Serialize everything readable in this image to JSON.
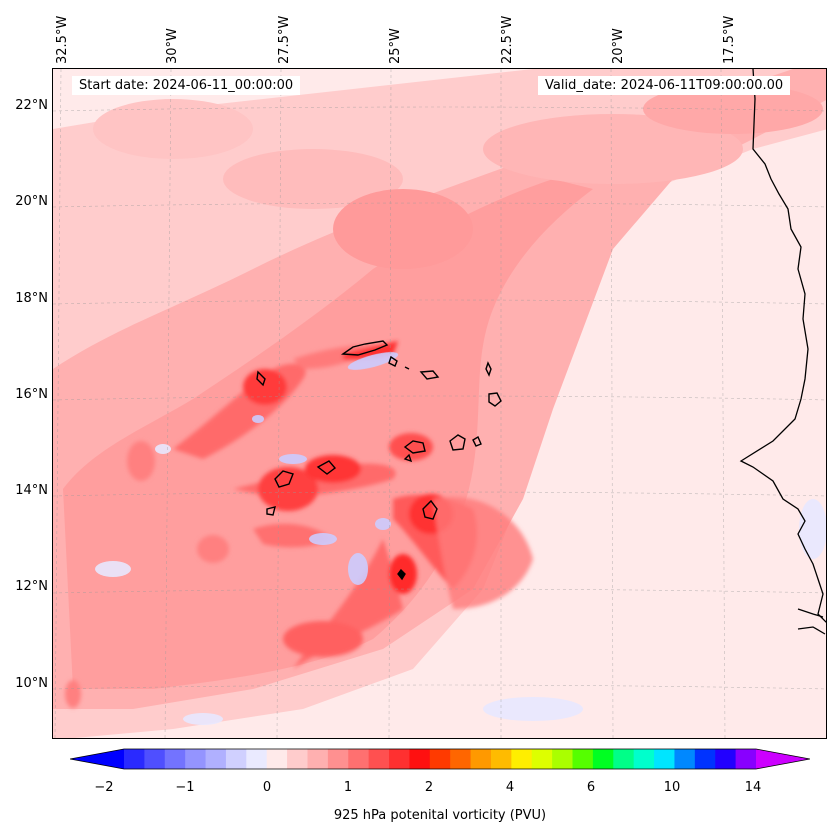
{
  "map": {
    "start_date_label": "Start date: 2024-06-11_00:00:00",
    "valid_date_label": "Valid_date: 2024-06-11T09:00:00.00",
    "longitude_labels": [
      "32.5°W",
      "30°W",
      "27.5°W",
      "25°W",
      "22.5°W",
      "20°W",
      "17.5°W"
    ],
    "latitude_labels": [
      "22°N",
      "20°N",
      "18°N",
      "16°N",
      "14°N",
      "12°N",
      "10°N"
    ],
    "extent": {
      "lon_min": -33.0,
      "lon_max": -15.3,
      "lat_min": 8.8,
      "lat_max": 22.8
    },
    "field": "925 hPa potential vorticity",
    "palette": {
      "background": "#ffeaea",
      "light_pink": "#ffcccc",
      "pink": "#ffb0b0",
      "medium_red": "#ff8888",
      "red": "#ff5a5a",
      "strong_red": "#ff2a2a",
      "negative_blue": "#ccccff",
      "negative_light": "#e8e8ff",
      "coastline": "#000000"
    }
  },
  "colorbar": {
    "label": "925 hPa potenital vorticity (PVU)",
    "tick_labels": [
      "−2",
      "−1",
      "0",
      "1",
      "2",
      "4",
      "6",
      "10",
      "14"
    ],
    "colors": [
      "#0000ff",
      "#2a2aff",
      "#4f4fff",
      "#7373ff",
      "#9494ff",
      "#b0b0ff",
      "#d0d0ff",
      "#eaeaff",
      "#ffeaea",
      "#ffcccc",
      "#ffb0b0",
      "#ff9090",
      "#ff7070",
      "#ff5050",
      "#ff3030",
      "#ff1010",
      "#ff3a00",
      "#ff6600",
      "#ff9900",
      "#ffbb00",
      "#ffee00",
      "#ddff00",
      "#aaff00",
      "#55ff00",
      "#00ff22",
      "#00ff88",
      "#00ffcc",
      "#00e5ff",
      "#0088ff",
      "#0033ff",
      "#2200ff",
      "#8800ff",
      "#cc00ff"
    ]
  }
}
